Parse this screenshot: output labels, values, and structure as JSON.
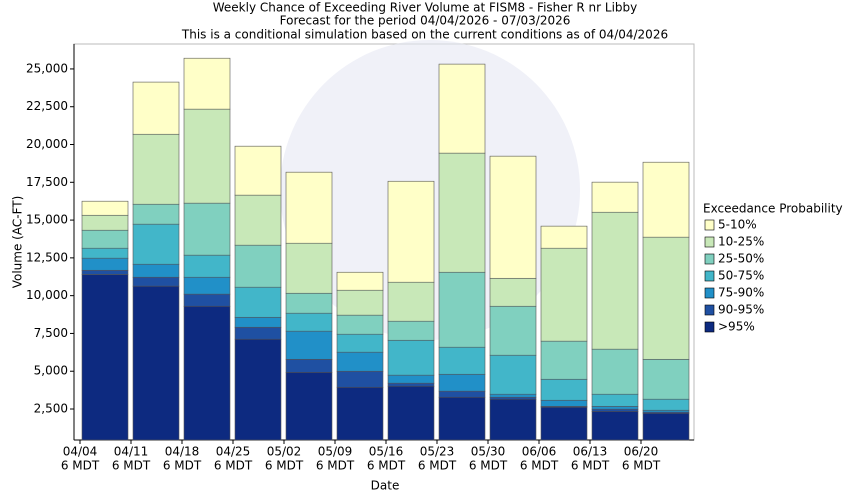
{
  "chart_data": {
    "type": "stacked_bar",
    "title": "Weekly Chance of Exceeding River Volume at FISM8 - Fisher R nr Libby",
    "subtitle": [
      "Forecast for the period 04/04/2026 - 07/03/2026",
      "This is a conditional simulation based on the current conditions as of 04/04/2026"
    ],
    "x_label": "Date",
    "y_label": "Volume (AC-FT)",
    "legend_title": "Exceedance Probability",
    "legend_position": "right",
    "categories": [
      [
        "04/04",
        "6 MDT"
      ],
      [
        "04/11",
        "6 MDT"
      ],
      [
        "04/18",
        "6 MDT"
      ],
      [
        "04/25",
        "6 MDT"
      ],
      [
        "05/02",
        "6 MDT"
      ],
      [
        "05/09",
        "6 MDT"
      ],
      [
        "05/16",
        "6 MDT"
      ],
      [
        "05/23",
        "6 MDT"
      ],
      [
        "05/30",
        "6 MDT"
      ],
      [
        "06/06",
        "6 MDT"
      ],
      [
        "06/13",
        "6 MDT"
      ],
      [
        "06/20",
        "6 MDT"
      ]
    ],
    "series": [
      {
        "name": ">95%",
        "color": "#0d2a80",
        "values": [
          10950,
          10180,
          8850,
          6670,
          4480,
          3490,
          3560,
          2830,
          2700,
          2170,
          1900,
          1770
        ]
      },
      {
        "name": "90-95%",
        "color": "#1f50a2",
        "values": [
          280,
          590,
          800,
          790,
          860,
          1060,
          200,
          400,
          130,
          60,
          140,
          70
        ]
      },
      {
        "name": "75-90%",
        "color": "#2190c8",
        "values": [
          800,
          860,
          1120,
          660,
          1860,
          1260,
          530,
          1120,
          200,
          400,
          190,
          130
        ]
      },
      {
        "name": "50-75%",
        "color": "#42b6c9",
        "values": [
          660,
          2650,
          1460,
          1990,
          1190,
          1190,
          2310,
          1790,
          2580,
          1390,
          800,
          730
        ]
      },
      {
        "name": "25-50%",
        "color": "#80d0bf",
        "values": [
          1190,
          1320,
          3440,
          2780,
          1320,
          1260,
          1260,
          4960,
          3240,
          2520,
          2980,
          2640
        ]
      },
      {
        "name": "10-25%",
        "color": "#c8e8b8",
        "values": [
          990,
          4630,
          6220,
          3310,
          3310,
          1650,
          2580,
          7880,
          1850,
          6150,
          9060,
          8080
        ]
      },
      {
        "name": "5-10%",
        "color": "#ffffc8",
        "values": [
          930,
          3450,
          3370,
          3240,
          4700,
          1190,
          6680,
          5890,
          8080,
          1460,
          1990,
          4960
        ]
      }
    ],
    "ylim": [
      450,
      26650
    ],
    "yticks": [
      {
        "value": 2500,
        "label": "2,500"
      },
      {
        "value": 5000,
        "label": "5,000"
      },
      {
        "value": 7500,
        "label": "7,500"
      },
      {
        "value": 10000,
        "label": "10,000"
      },
      {
        "value": 12500,
        "label": "12,500"
      },
      {
        "value": 15000,
        "label": "15,000"
      },
      {
        "value": 17500,
        "label": "17,500"
      },
      {
        "value": 20000,
        "label": "20,000"
      },
      {
        "value": 22500,
        "label": "22,500"
      },
      {
        "value": 25000,
        "label": "25,000"
      }
    ]
  }
}
